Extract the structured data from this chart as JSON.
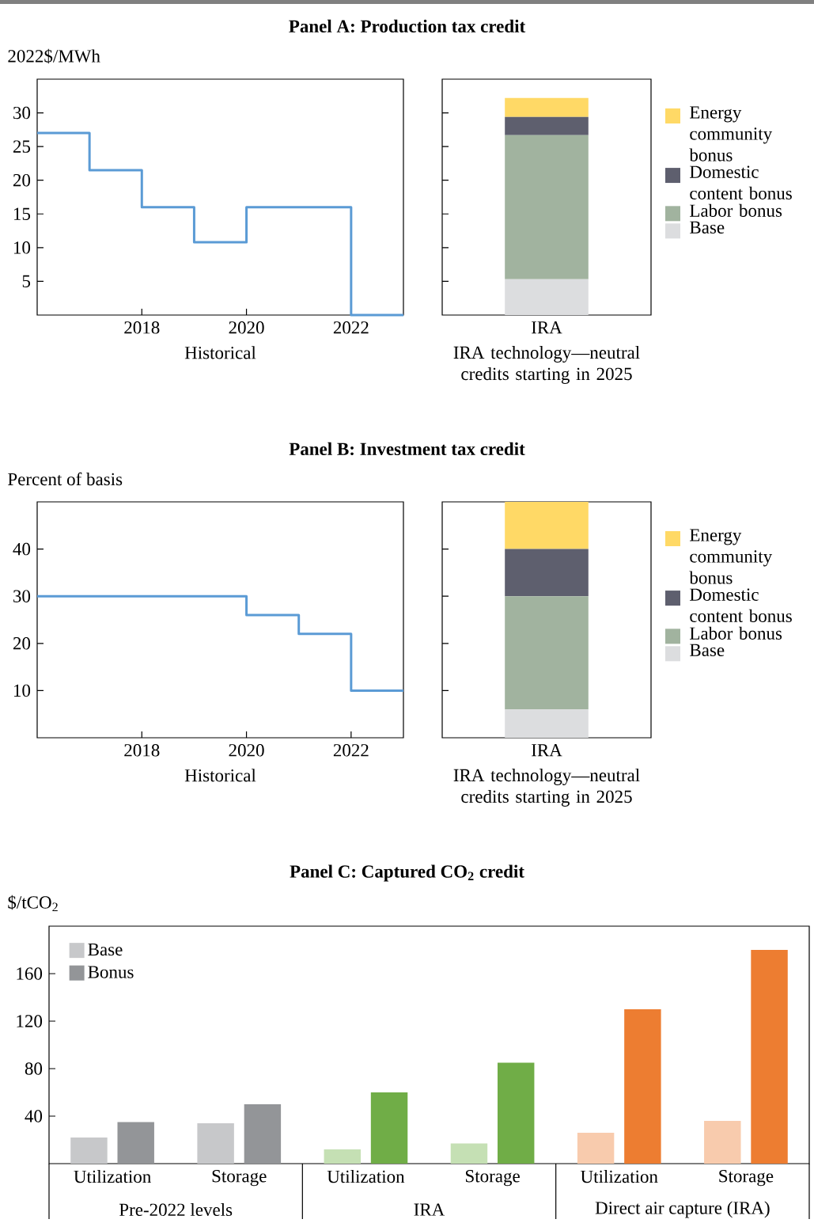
{
  "chart_data": [
    {
      "type": "step",
      "title": "Panel A: Production tax credit",
      "ylabel": "2022$/MWh",
      "xlabel": "Historical",
      "x": [
        2016,
        2017,
        2018,
        2019,
        2020,
        2021,
        2022,
        2023
      ],
      "values": [
        27,
        21.5,
        16,
        10.8,
        16,
        16,
        0,
        0
      ],
      "color": "#5b9bd5",
      "xlim": [
        2016,
        2023
      ],
      "ylim": [
        0,
        35
      ],
      "xticks": [
        2018,
        2020,
        2022
      ],
      "yticks": [
        5,
        10,
        15,
        20,
        25,
        30
      ]
    },
    {
      "type": "bar",
      "stacked": true,
      "categories": [
        "IRA"
      ],
      "xlabel": "IRA technology—neutral credits starting in 2025",
      "series": [
        {
          "name": "Base",
          "color": "#dcdddf",
          "values": [
            5.3
          ]
        },
        {
          "name": "Labor bonus",
          "color": "#a1b39f",
          "values": [
            21.4
          ]
        },
        {
          "name": "Domestic content bonus",
          "color": "#5e5f6e",
          "values": [
            2.7
          ]
        },
        {
          "name": "Energy community bonus",
          "color": "#ffd966",
          "values": [
            2.8
          ]
        }
      ],
      "ylim": [
        0,
        35
      ],
      "yticks": [
        5,
        10,
        15,
        20,
        25,
        30
      ],
      "tick_labels": "x",
      "legend": "right"
    },
    {
      "type": "step",
      "title": "Panel B: Investment tax credit",
      "ylabel": "Percent of basis",
      "xlabel": "Historical",
      "x": [
        2016,
        2020,
        2021,
        2022,
        2023
      ],
      "values": [
        30,
        26,
        22,
        10,
        10
      ],
      "color": "#5b9bd5",
      "xlim": [
        2016,
        2023
      ],
      "ylim": [
        0,
        50
      ],
      "xticks": [
        2018,
        2020,
        2022
      ],
      "yticks": [
        10,
        20,
        30,
        40
      ]
    },
    {
      "type": "bar",
      "stacked": true,
      "categories": [
        "IRA"
      ],
      "xlabel": "IRA technology—neutral credits starting in 2025",
      "series": [
        {
          "name": "Base",
          "color": "#dcdddf",
          "values": [
            6
          ]
        },
        {
          "name": "Labor bonus",
          "color": "#a1b39f",
          "values": [
            24
          ]
        },
        {
          "name": "Domestic content bonus",
          "color": "#5e5f6e",
          "values": [
            10
          ]
        },
        {
          "name": "Energy community bonus",
          "color": "#ffd966",
          "values": [
            10
          ]
        }
      ],
      "ylim": [
        0,
        50
      ],
      "yticks": [
        10,
        20,
        30,
        40
      ],
      "tick_labels": "x",
      "legend": "right"
    },
    {
      "type": "bar",
      "title": "Panel C: Captured CO$_{2}$ credit",
      "ylabel": "$/tCO$_{2}$",
      "categories": [
        "Utilization",
        "Storage",
        "Utilization",
        "Storage",
        "Utilization",
        "Storage"
      ],
      "annotations": [
        "Pre-2022 levels",
        "IRA",
        "Direct air capture (IRA)"
      ],
      "series": [
        {
          "name": "Base",
          "color": "#c7c8ca",
          "colors": [
            "#c7c8ca",
            "#c7c8ca",
            "#c5e0b4",
            "#c5e0b4",
            "#f8cbad",
            "#f8cbad"
          ],
          "values": [
            22,
            34,
            12,
            17,
            26,
            36
          ]
        },
        {
          "name": "Bonus",
          "color": "#939598",
          "colors": [
            "#939598",
            "#939598",
            "#70ad47",
            "#70ad47",
            "#ed7d31",
            "#ed7d31"
          ],
          "values": [
            35,
            50,
            60,
            85,
            130,
            180
          ]
        }
      ],
      "ylim": [
        0,
        200
      ],
      "yticks": [
        40,
        80,
        120,
        160
      ],
      "legend": "top left"
    }
  ]
}
